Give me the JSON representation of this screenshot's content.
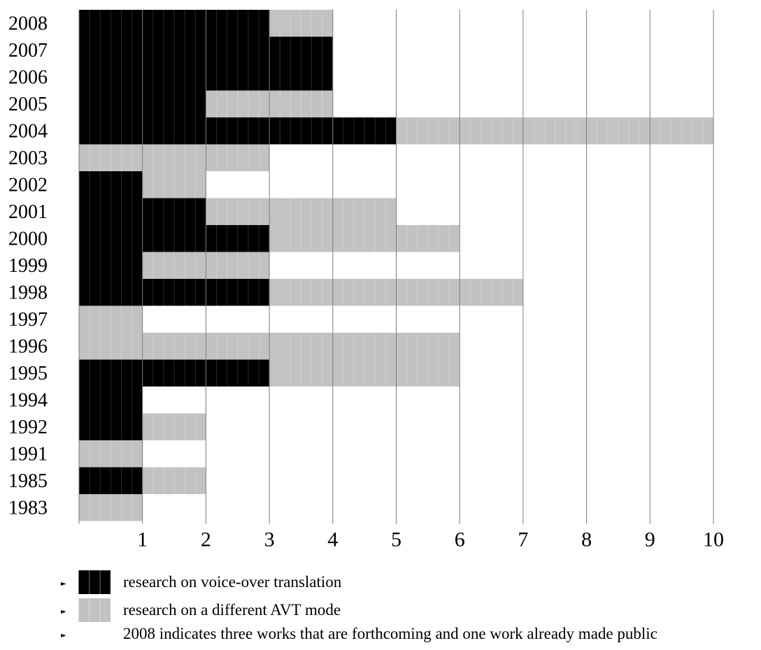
{
  "chart_data": {
    "type": "bar",
    "orientation": "horizontal",
    "stacked": true,
    "categories": [
      "2008",
      "2007",
      "2006",
      "2005",
      "2004",
      "2003",
      "2002",
      "2001",
      "2000",
      "1999",
      "1998",
      "1997",
      "1996",
      "1995",
      "1994",
      "1992",
      "1991",
      "1985",
      "1983"
    ],
    "series": [
      {
        "name": "research on voice-over translation",
        "color": "#000000",
        "values": [
          3,
          4,
          4,
          2,
          5,
          0,
          1,
          2,
          3,
          1,
          3,
          0,
          0,
          3,
          1,
          1,
          0,
          1,
          0
        ]
      },
      {
        "name": "research on a different AVT mode",
        "color": "#c2c2c2",
        "values": [
          1,
          0,
          0,
          2,
          5,
          3,
          1,
          3,
          3,
          2,
          4,
          1,
          6,
          3,
          0,
          1,
          1,
          1,
          1
        ]
      }
    ],
    "xlim": [
      0,
      10
    ],
    "xticks": [
      1,
      2,
      3,
      4,
      5,
      6,
      7,
      8,
      9,
      10
    ],
    "grid": "vertical",
    "legend_position": "bottom",
    "xlabel": "",
    "ylabel": "",
    "title": ""
  },
  "legend": {
    "voice_over_label": "research on voice-over translation",
    "other_mode_label": "research on a different AVT mode",
    "note": "2008 indicates three works that are forthcoming and one work already made public",
    "bullet": "►"
  },
  "colors": {
    "voice_over": "#000000",
    "other_mode": "#c2c2c2",
    "grid": "#7a7a7a",
    "text": "#000000"
  }
}
